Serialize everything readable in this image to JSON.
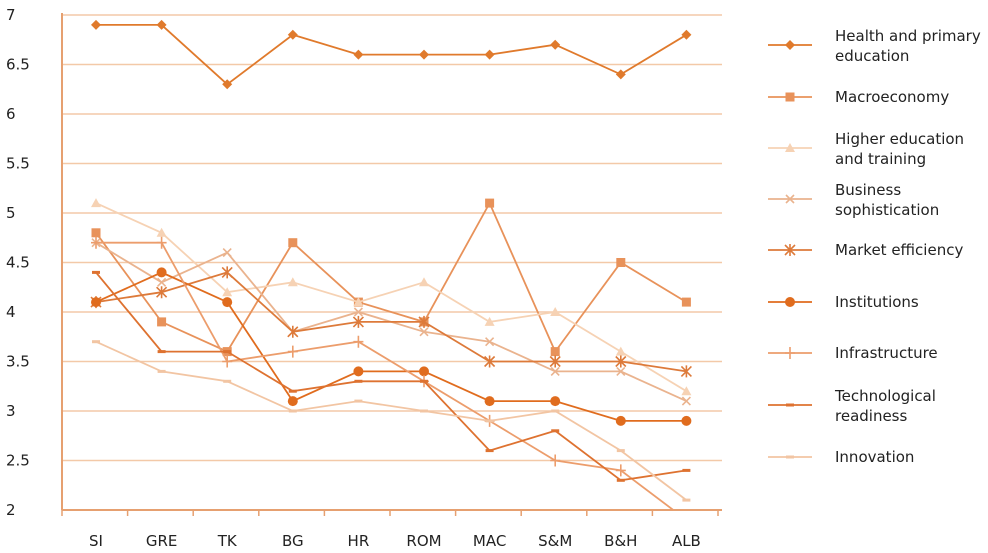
{
  "chart_data": {
    "type": "line",
    "title": "",
    "xlabel": "",
    "ylabel": "",
    "ylim": [
      2,
      7
    ],
    "yticks": [
      "7",
      "6.5",
      "6",
      "5.5",
      "5",
      "4.5",
      "4",
      "3.5",
      "3",
      "2.5",
      "2"
    ],
    "categories": [
      "SI",
      "GRE",
      "TK",
      "BG",
      "HR",
      "ROM",
      "MAC",
      "S&M",
      "B&H",
      "ALB"
    ],
    "grid": "horizontal",
    "legend_position": "right",
    "series": [
      {
        "name": "Health and primary education",
        "color": "#e07a2c",
        "marker": "diamond",
        "values": [
          6.9,
          6.9,
          6.3,
          6.8,
          6.6,
          6.6,
          6.6,
          6.7,
          6.4,
          6.8
        ]
      },
      {
        "name": "Macroeconomy",
        "color": "#e8925a",
        "marker": "square",
        "values": [
          4.8,
          3.9,
          3.6,
          4.7,
          4.1,
          3.9,
          5.1,
          3.6,
          4.5,
          4.1
        ]
      },
      {
        "name": "Higher education and training",
        "color": "#f6d2b4",
        "marker": "triangle",
        "values": [
          5.1,
          4.8,
          4.2,
          4.3,
          4.1,
          4.3,
          3.9,
          4.0,
          3.6,
          3.2
        ]
      },
      {
        "name": "Business sophistication",
        "color": "#eab38e",
        "marker": "x",
        "values": [
          4.7,
          4.3,
          4.6,
          3.8,
          4.0,
          3.8,
          3.7,
          3.4,
          3.4,
          3.1
        ]
      },
      {
        "name": "Market efficiency",
        "color": "#dd7a3a",
        "marker": "asterisk",
        "values": [
          4.1,
          4.2,
          4.4,
          3.8,
          3.9,
          3.9,
          3.5,
          3.5,
          3.5,
          3.4
        ]
      },
      {
        "name": "Institutions",
        "color": "#e06c1e",
        "marker": "circle",
        "values": [
          4.1,
          4.4,
          4.1,
          3.1,
          3.4,
          3.4,
          3.1,
          3.1,
          2.9,
          2.9
        ]
      },
      {
        "name": "Infrastructure",
        "color": "#ec9d6c",
        "marker": "plus",
        "values": [
          4.7,
          4.7,
          3.5,
          3.6,
          3.7,
          3.3,
          2.9,
          2.5,
          2.4,
          1.9
        ]
      },
      {
        "name": "Technological readiness",
        "color": "#de7230",
        "marker": "dash",
        "values": [
          4.4,
          3.6,
          3.6,
          3.2,
          3.3,
          3.3,
          2.6,
          2.8,
          2.3,
          2.4
        ]
      },
      {
        "name": "Innovation",
        "color": "#f2c5a3",
        "marker": "dash",
        "values": [
          3.7,
          3.4,
          3.3,
          3.0,
          3.1,
          3.0,
          2.9,
          3.0,
          2.6,
          2.1
        ]
      }
    ]
  },
  "legend": [
    {
      "line1": "Health and primary",
      "line2": "education"
    },
    {
      "line1": "Macroeconomy",
      "line2": ""
    },
    {
      "line1": "Higher education",
      "line2": "and training"
    },
    {
      "line1": "Business",
      "line2": "sophistication"
    },
    {
      "line1": "Market efficiency",
      "line2": ""
    },
    {
      "line1": "Institutions",
      "line2": ""
    },
    {
      "line1": "Infrastructure",
      "line2": ""
    },
    {
      "line1": "Technological",
      "line2": "readiness"
    },
    {
      "line1": "Innovation",
      "line2": ""
    }
  ]
}
